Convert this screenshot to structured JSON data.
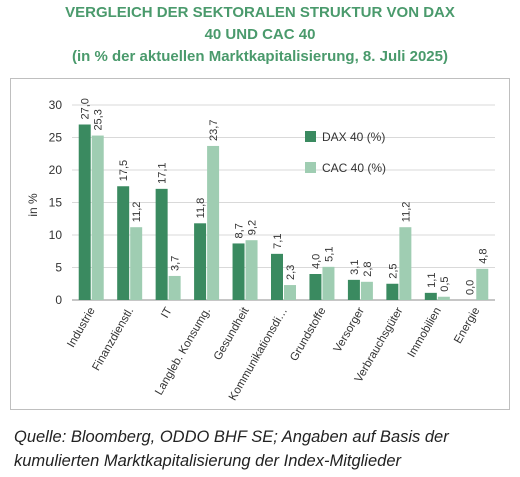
{
  "title_line1": "VERGLEICH DER SEKTORALEN STRUKTUR VON DAX",
  "title_line2": "40 UND CAC 40",
  "title_line3": "(in % der aktuellen Marktkapitalisierung, 8. Juli 2025)",
  "source_line1": "Quelle: Bloomberg, ODDO BHF SE; Angaben auf Basis der",
  "source_line2": "kumulierten Marktkapitalisierung der Index-Mitglieder",
  "colors": {
    "title": "#4a9a6c",
    "dax": "#3a8a60",
    "cac": "#9fcdb2"
  },
  "chart_data": {
    "type": "bar",
    "title": "VERGLEICH DER SEKTORALEN STRUKTUR VON DAX 40 UND CAC 40",
    "ylabel": "in %",
    "ylim": [
      0,
      30
    ],
    "yticks": [
      0,
      5,
      10,
      15,
      20,
      25,
      30
    ],
    "grid": true,
    "legend_position": "upper-right",
    "categories": [
      "Industrie",
      "Finanzdienstl.",
      "IT",
      "Langleb. Konsumg.",
      "Gesundheit",
      "Kommunikationsdi…",
      "Grundstoffe",
      "Versorger",
      "Verbrauchsgüter",
      "Immobilien",
      "Energie"
    ],
    "series": [
      {
        "name": "DAX 40 (%)",
        "values": [
          27.0,
          17.5,
          17.1,
          11.8,
          8.7,
          7.1,
          4.0,
          3.1,
          2.5,
          1.1,
          0.0
        ],
        "labels": [
          "27,0",
          "17,5",
          "17,1",
          "11,8",
          "8,7",
          "7,1",
          "4,0",
          "3,1",
          "2,5",
          "1,1",
          "0,0"
        ]
      },
      {
        "name": "CAC 40 (%)",
        "values": [
          25.3,
          11.2,
          3.7,
          23.7,
          9.2,
          2.3,
          5.1,
          2.8,
          11.2,
          0.5,
          4.8
        ],
        "labels": [
          "25,3",
          "11,2",
          "3,7",
          "23,7",
          "9,2",
          "2,3",
          "5,1",
          "2,8",
          "11,2",
          "0,5",
          "4,8"
        ]
      }
    ]
  }
}
